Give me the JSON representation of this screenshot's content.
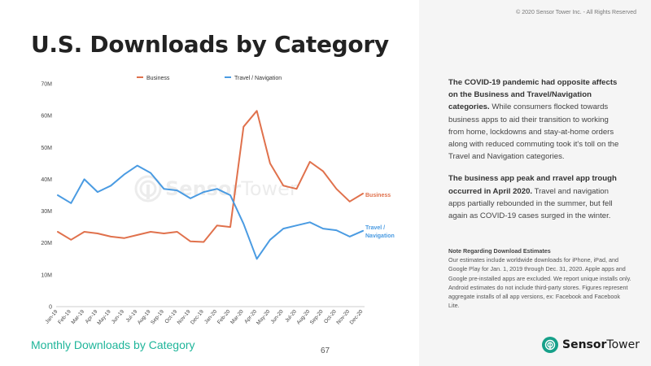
{
  "header": {
    "title": "U.S. Downloads by Category",
    "copyright": "© 2020 Sensor Tower Inc. - All Rights Reserved"
  },
  "footer": {
    "subtitle": "Monthly Downloads by Category",
    "page_number": "67"
  },
  "brand": {
    "logo_bold": "Sensor",
    "logo_light": "Tower",
    "watermark_bold": "Sensor",
    "watermark_light": "Tower",
    "color": "#16a089"
  },
  "commentary": {
    "p1_bold": "The COVID-19 pandemic had opposite affects on the Business and Travel/Navigation categories.",
    "p1_text": " While consumers flocked towards business apps to aid their transition to working from home, lockdowns and stay-at-home orders along with reduced commuting took it's toll on the Travel and Navigation categories.",
    "p2_bold": "The business app peak and rravel app trough occurred in April 2020.",
    "p2_text": " Travel and navigation apps partially rebounded in the summer, but fell again as COVID-19 cases surged in the winter."
  },
  "note": {
    "title": "Note Regarding Download Estimates",
    "text": "Our estimates include worldwide downloads for iPhone, iPad, and Google Play for Jan. 1, 2019 through Dec. 31, 2020. Apple apps and Google pre-installed apps are excluded. We report unique installs only. Android estimates do not include third-party stores. Figures represent aggregate installs of all app versions, ex: Facebook and Facebook Lite."
  },
  "chart_data": {
    "type": "line",
    "categories": [
      "Jan-19",
      "Feb-19",
      "Mar-19",
      "Apr-19",
      "May-19",
      "Jun-19",
      "Jul-19",
      "Aug-19",
      "Sep-19",
      "Oct-19",
      "Nov-19",
      "Dec-19",
      "Jan-20",
      "Feb-20",
      "Mar-20",
      "Apr-20",
      "May-20",
      "Jun-20",
      "Jul-20",
      "Aug-20",
      "Sep-20",
      "Oct-20",
      "Nov-20",
      "Dec-20"
    ],
    "series": [
      {
        "name": "Business",
        "end_label": "Business",
        "color": "#e0714c",
        "values": [
          23.5,
          21.0,
          23.5,
          23.0,
          22.0,
          21.5,
          22.5,
          23.5,
          23.0,
          23.5,
          20.5,
          20.3,
          25.5,
          25.0,
          56.5,
          61.5,
          45.0,
          38.0,
          37.0,
          45.5,
          42.5,
          37.0,
          33.0,
          35.5
        ]
      },
      {
        "name": "Travel / Navigation",
        "end_label": "Travel / Navigation",
        "color": "#4a9be2",
        "values": [
          35.0,
          32.5,
          40.0,
          36.0,
          38.0,
          41.5,
          44.3,
          42.0,
          37.0,
          36.5,
          34.0,
          36.0,
          37.0,
          35.0,
          26.0,
          15.0,
          21.0,
          24.5,
          25.5,
          26.5,
          24.5,
          24.0,
          22.0,
          23.8
        ]
      }
    ],
    "yticks": [
      "0",
      "10M",
      "20M",
      "30M",
      "40M",
      "50M",
      "60M",
      "70M"
    ],
    "ylim": [
      0,
      70
    ],
    "grid": false,
    "legend": "top"
  }
}
